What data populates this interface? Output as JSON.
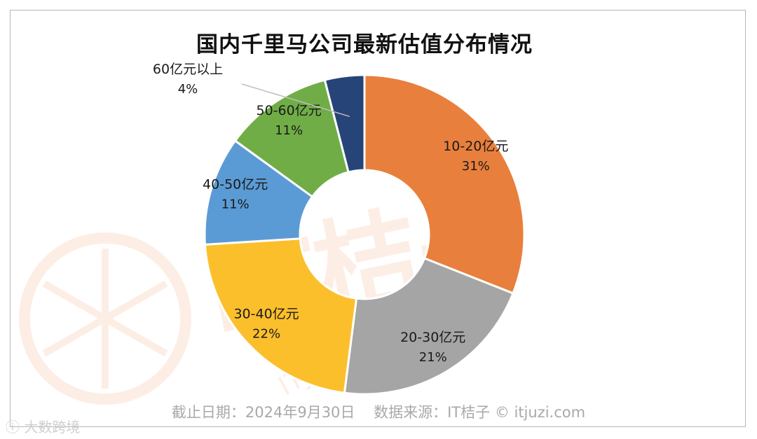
{
  "title": "国内千里马公司最新估值分布情况",
  "footer": "截止日期：2024年9月30日    数据来源：IT桔子 © itjuzi.com",
  "watermark": {
    "brand": "IT桔子",
    "domain": "ITJUZI.COM",
    "corner_text": "大数跨境"
  },
  "chart_data": {
    "type": "donut",
    "title": "国内千里马公司最新估值分布情况",
    "unit": "%",
    "slices": [
      {
        "label": "10-20亿元",
        "value": 31,
        "value_label": "31%",
        "color": "#E97F3C"
      },
      {
        "label": "20-30亿元",
        "value": 21,
        "value_label": "21%",
        "color": "#A5A5A5"
      },
      {
        "label": "30-40亿元",
        "value": 22,
        "value_label": "22%",
        "color": "#FCBF2C"
      },
      {
        "label": "40-50亿元",
        "value": 11,
        "value_label": "11%",
        "color": "#5B9BD5"
      },
      {
        "label": "50-60亿元",
        "value": 11,
        "value_label": "11%",
        "color": "#70AD47"
      },
      {
        "label": "60亿元以上",
        "value": 4,
        "value_label": "4%",
        "color": "#264478"
      }
    ]
  }
}
